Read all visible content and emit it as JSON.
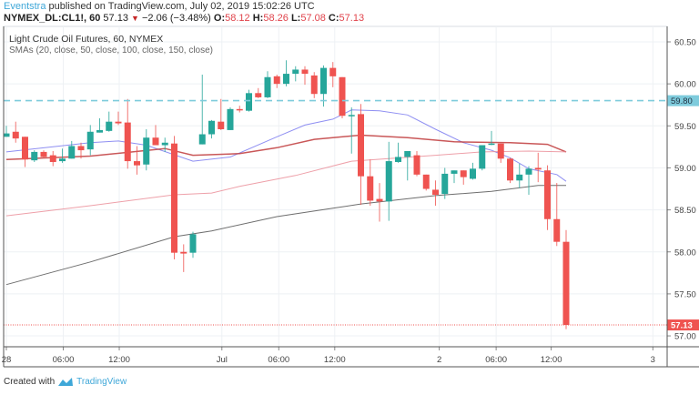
{
  "header": {
    "author": "Eventstra",
    "published_text": "published on TradingView.com, July 02, 2019 15:02:26 UTC",
    "symbol": "NYMEX_DL:CL1!, 60",
    "last": "57.13",
    "change": "−2.06 (−3.48%)",
    "o_label": "O:",
    "o": "58.12",
    "h_label": "H:",
    "h": "58.26",
    "l_label": "L:",
    "l": "57.08",
    "c_label": "C:",
    "c": "57.13"
  },
  "legend": {
    "title": "Light Crude Oil Futures, 60, NYMEX",
    "indicators": "SMAs (20, close, 50, close, 100, close, 150, close)"
  },
  "footer": {
    "created_with": "Created with",
    "brand": "TradingView"
  },
  "colors": {
    "up": "#26a69a",
    "down": "#ef5350",
    "sma20": "#7b7bf0",
    "sma50": "#c0393b",
    "sma100": "#eb8f9a",
    "sma150": "#555555",
    "alert_line": "#7ecbdc",
    "last_price": "#ef5350"
  },
  "chart_data": {
    "type": "candlestick",
    "interval": "60",
    "ylim": [
      56.9,
      60.65
    ],
    "y_ticks": [
      "60.50",
      "60.00",
      "59.50",
      "59.00",
      "58.50",
      "58.00",
      "57.50",
      "57.00"
    ],
    "x_ticks": [
      "28",
      "06:00",
      "12:00",
      "Jul",
      "06:00",
      "12:00",
      "2",
      "06:00",
      "12:00",
      "3"
    ],
    "grid": true,
    "horizontal_line": {
      "value": 59.8,
      "label": "59.80",
      "style": "dashed"
    },
    "last_price": {
      "value": 57.13,
      "label": "57.13"
    },
    "candles": [
      [
        59.37,
        59.5,
        59.37,
        59.41
      ],
      [
        59.43,
        59.55,
        59.3,
        59.35
      ],
      [
        59.37,
        59.37,
        59.01,
        59.1
      ],
      [
        59.09,
        59.21,
        59.07,
        59.19
      ],
      [
        59.19,
        59.21,
        59.12,
        59.13
      ],
      [
        59.15,
        59.2,
        59.02,
        59.07
      ],
      [
        59.08,
        59.23,
        59.06,
        59.11
      ],
      [
        59.11,
        59.32,
        59.11,
        59.26
      ],
      [
        59.26,
        59.3,
        59.11,
        59.21
      ],
      [
        59.22,
        59.51,
        59.15,
        59.43
      ],
      [
        59.42,
        59.59,
        59.42,
        59.45
      ],
      [
        59.44,
        59.67,
        59.43,
        59.55
      ],
      [
        59.55,
        59.67,
        59.51,
        59.53
      ],
      [
        59.54,
        59.82,
        58.99,
        59.08
      ],
      [
        59.08,
        59.26,
        58.92,
        59.03
      ],
      [
        59.04,
        59.46,
        58.97,
        59.36
      ],
      [
        59.36,
        59.51,
        59.27,
        59.27
      ],
      [
        59.27,
        59.36,
        59.19,
        59.3
      ],
      [
        59.29,
        59.38,
        57.91,
        57.99
      ],
      [
        58.0,
        58.09,
        57.76,
        57.98
      ],
      [
        57.99,
        58.24,
        57.93,
        58.21
      ],
      [
        59.28,
        60.11,
        59.28,
        59.4
      ],
      [
        59.4,
        59.57,
        59.35,
        59.56
      ],
      [
        59.55,
        59.82,
        59.45,
        59.46
      ],
      [
        59.45,
        59.72,
        59.45,
        59.7
      ],
      [
        59.7,
        59.74,
        59.66,
        59.69
      ],
      [
        59.68,
        59.93,
        59.67,
        59.89
      ],
      [
        59.89,
        59.95,
        59.83,
        59.84
      ],
      [
        59.84,
        60.15,
        59.83,
        60.08
      ],
      [
        60.09,
        60.11,
        59.95,
        60.0
      ],
      [
        60.0,
        60.28,
        59.97,
        60.12
      ],
      [
        60.12,
        60.21,
        60.03,
        60.17
      ],
      [
        60.17,
        60.21,
        59.99,
        60.12
      ],
      [
        60.1,
        60.14,
        59.83,
        59.88
      ],
      [
        59.88,
        60.22,
        59.73,
        60.19
      ],
      [
        60.19,
        60.26,
        59.96,
        60.09
      ],
      [
        60.08,
        60.08,
        59.59,
        59.62
      ],
      [
        59.62,
        59.72,
        59.17,
        59.63
      ],
      [
        59.64,
        59.76,
        58.56,
        58.9
      ],
      [
        58.9,
        59.1,
        58.55,
        58.61
      ],
      [
        58.63,
        58.82,
        58.36,
        58.6
      ],
      [
        58.6,
        59.31,
        58.37,
        59.08
      ],
      [
        59.07,
        59.3,
        59.06,
        59.13
      ],
      [
        59.13,
        59.2,
        58.85,
        59.2
      ],
      [
        59.15,
        59.2,
        58.9,
        58.92
      ],
      [
        58.92,
        58.92,
        58.73,
        58.75
      ],
      [
        58.74,
        58.85,
        58.55,
        58.68
      ],
      [
        58.69,
        59.0,
        58.63,
        58.93
      ],
      [
        58.93,
        58.97,
        58.82,
        58.97
      ],
      [
        58.97,
        58.97,
        58.8,
        58.89
      ],
      [
        58.87,
        59.06,
        58.86,
        58.99
      ],
      [
        58.99,
        59.27,
        58.97,
        59.27
      ],
      [
        59.28,
        59.44,
        59.27,
        59.29
      ],
      [
        59.29,
        59.29,
        59.06,
        59.11
      ],
      [
        59.11,
        59.12,
        58.82,
        58.85
      ],
      [
        58.85,
        59.05,
        58.76,
        58.92
      ],
      [
        58.92,
        59.02,
        58.68,
        58.99
      ],
      [
        59.0,
        59.18,
        58.83,
        58.98
      ],
      [
        58.97,
        59.03,
        58.26,
        58.39
      ],
      [
        58.39,
        58.82,
        58.07,
        58.12
      ],
      [
        58.12,
        58.26,
        57.08,
        57.13
      ]
    ],
    "candle_format": [
      "open",
      "high",
      "low",
      "close"
    ],
    "sma": [
      {
        "period": 20,
        "points": [
          [
            0,
            59.19
          ],
          [
            9,
            59.3
          ],
          [
            12,
            59.32
          ],
          [
            15,
            59.27
          ],
          [
            20,
            59.08
          ],
          [
            24,
            59.13
          ],
          [
            29,
            59.37
          ],
          [
            32,
            59.51
          ],
          [
            35,
            59.58
          ],
          [
            37,
            59.69
          ],
          [
            40,
            59.68
          ],
          [
            43,
            59.63
          ],
          [
            46,
            59.46
          ],
          [
            49,
            59.3
          ],
          [
            52,
            59.21
          ],
          [
            54,
            59.12
          ],
          [
            56,
            58.99
          ],
          [
            59,
            58.92
          ],
          [
            60,
            58.84
          ]
        ]
      },
      {
        "period": 50,
        "points": [
          [
            0,
            59.1
          ],
          [
            9,
            59.14
          ],
          [
            17,
            59.23
          ],
          [
            20,
            59.15
          ],
          [
            25,
            59.17
          ],
          [
            29,
            59.24
          ],
          [
            33,
            59.34
          ],
          [
            37,
            59.38
          ],
          [
            38,
            59.39
          ],
          [
            43,
            59.36
          ],
          [
            48,
            59.31
          ],
          [
            54,
            59.3
          ],
          [
            58,
            59.28
          ],
          [
            60,
            59.19
          ]
        ]
      },
      {
        "period": 100,
        "points": [
          [
            0,
            58.43
          ],
          [
            9,
            58.55
          ],
          [
            18,
            58.68
          ],
          [
            22,
            58.7
          ],
          [
            25,
            58.78
          ],
          [
            31,
            58.91
          ],
          [
            37,
            59.08
          ],
          [
            46,
            59.15
          ],
          [
            51,
            59.19
          ],
          [
            56,
            59.2
          ],
          [
            60,
            59.19
          ]
        ]
      },
      {
        "period": 150,
        "points": [
          [
            0,
            57.61
          ],
          [
            9,
            57.88
          ],
          [
            18,
            58.18
          ],
          [
            22,
            58.25
          ],
          [
            29,
            58.42
          ],
          [
            35,
            58.52
          ],
          [
            38,
            58.57
          ],
          [
            46,
            58.67
          ],
          [
            52,
            58.72
          ],
          [
            57,
            58.79
          ],
          [
            60,
            58.79
          ]
        ]
      }
    ]
  }
}
